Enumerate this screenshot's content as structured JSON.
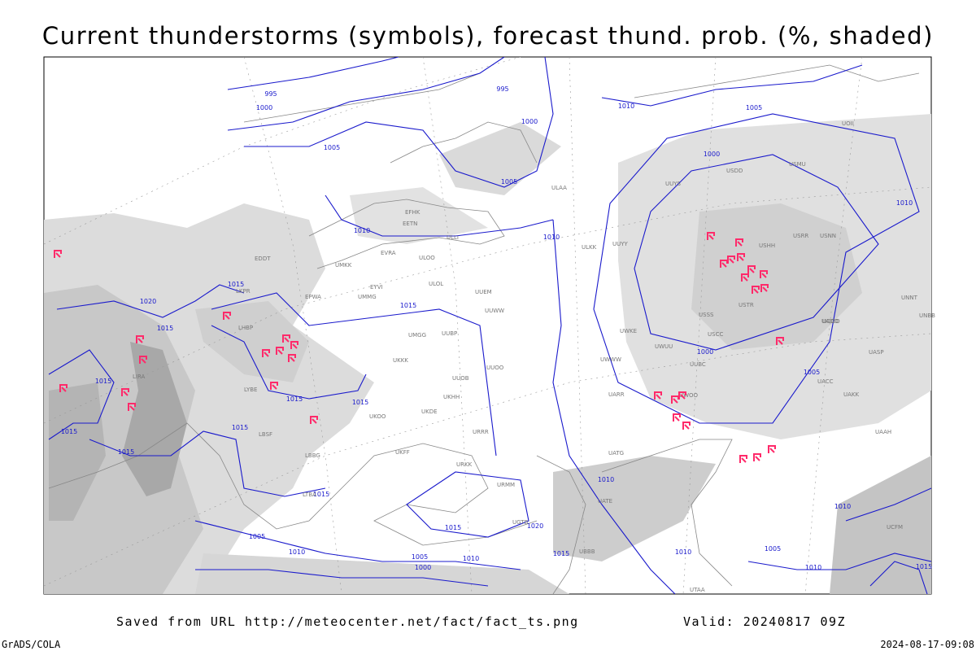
{
  "title": "Current thunderstorms (symbols), forecast thund. prob. (%, shaded)",
  "footer": {
    "source": "Saved from URL http://meteocenter.net/fact/fact_ts.png",
    "valid": "Valid: 20240817 09Z",
    "software": "GrADS/COLA",
    "timestamp": "2024-08-17-09:08"
  },
  "isobar_labels": [
    "995",
    "1000",
    "995",
    "1000",
    "1010",
    "1005",
    "1005",
    "1005",
    "1000",
    "1010",
    "1010",
    "1015",
    "1020",
    "1015",
    "1015",
    "1000",
    "1005",
    "1010",
    "1015",
    "1015",
    "1015",
    "1015",
    "1015",
    "1015",
    "1015",
    "1010",
    "1015",
    "1020",
    "1010",
    "1005",
    "1010",
    "1005",
    "1010",
    "1000",
    "1015",
    "1005",
    "1010",
    "1010",
    "1015"
  ],
  "stations": [
    "ULAA",
    "EFHK",
    "EETN",
    "EVRA",
    "ULOO",
    "ULOL",
    "UMMG",
    "EYVI",
    "UUEM",
    "UUWW",
    "UUBP",
    "UMGG",
    "UKKK",
    "UUOB",
    "UUOO",
    "URRR",
    "UKFF",
    "URKK",
    "URMM",
    "UGTB",
    "UBBB",
    "UATG",
    "UATE",
    "UTAA",
    "UACC",
    "UAKK",
    "UASP",
    "UAOO",
    "USSS",
    "USCC",
    "USTR",
    "USHH",
    "USRR",
    "USNN",
    "USMU",
    "USDD",
    "UUYY",
    "ULKK",
    "UUYS",
    "UNNT",
    "UNBB",
    "UAAH",
    "UCFM",
    "ULLI",
    "UMKK",
    "EPWA",
    "LKPR",
    "LHBP",
    "LYBE",
    "LBSF",
    "LIRA",
    "LBBG",
    "LTBA",
    "UWKE",
    "UWWW",
    "UWOO",
    "UWUU",
    "UARR",
    "UOOO",
    "UOII",
    "EDDT",
    "UUBC",
    "UKHH",
    "UKDE",
    "UKOO"
  ]
}
